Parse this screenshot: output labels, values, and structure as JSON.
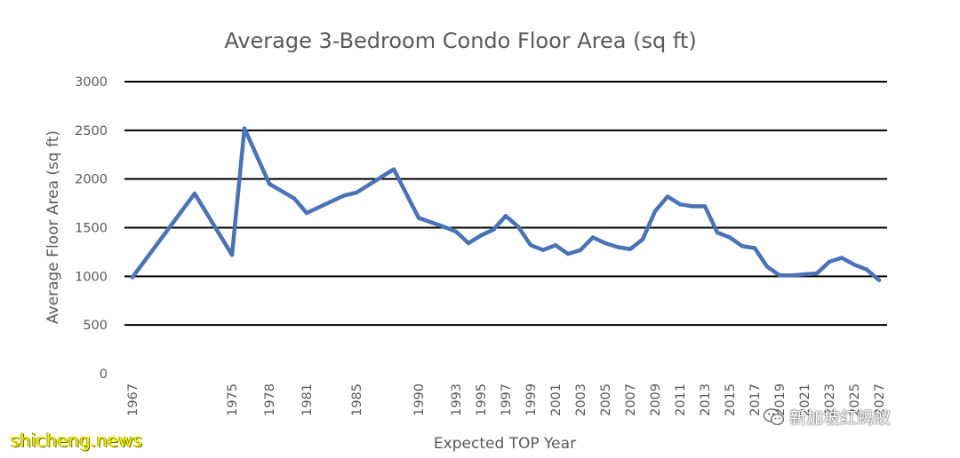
{
  "chart_data": {
    "type": "line",
    "title": "Average 3-Bedroom Condo Floor Area (sq ft)",
    "xlabel": "Expected TOP Year",
    "ylabel": "Average Floor Area (sq ft)",
    "ylim": [
      0,
      3000
    ],
    "yticks": [
      0,
      500,
      1000,
      1500,
      2000,
      2500,
      3000
    ],
    "ytick_labels": [
      "0",
      "500",
      "1000",
      "1500",
      "2000",
      "2500",
      "3000"
    ],
    "xtick_labels": [
      "1967",
      "1975",
      "1978",
      "1981",
      "1985",
      "1990",
      "1993",
      "1995",
      "1997",
      "1999",
      "2001",
      "2003",
      "2005",
      "2007",
      "2009",
      "2011",
      "2013",
      "2015",
      "2017",
      "2019",
      "2021",
      "2023",
      "2025",
      "2027"
    ],
    "categories": [
      "1967",
      "1972",
      "1975",
      "1976",
      "1978",
      "1980",
      "1981",
      "1984",
      "1985",
      "1988",
      "1990",
      "1992",
      "1993",
      "1994",
      "1995",
      "1996",
      "1997",
      "1998",
      "1999",
      "2000",
      "2001",
      "2002",
      "2003",
      "2004",
      "2005",
      "2006",
      "2007",
      "2008",
      "2009",
      "2010",
      "2011",
      "2012",
      "2013",
      "2014",
      "2015",
      "2016",
      "2017",
      "2018",
      "2019",
      "2020",
      "2021",
      "2022",
      "2023",
      "2024",
      "2025",
      "2026",
      "2027"
    ],
    "series": [
      {
        "values": [
          990,
          1850,
          1220,
          2520,
          1950,
          1800,
          1650,
          1830,
          1860,
          2100,
          1600,
          1510,
          1460,
          1340,
          1420,
          1480,
          1620,
          1510,
          1320,
          1270,
          1320,
          1230,
          1270,
          1400,
          1340,
          1300,
          1280,
          1380,
          1670,
          1820,
          1740,
          1720,
          1720,
          1450,
          1400,
          1310,
          1290,
          1100,
          1010,
          1010,
          1020,
          1030,
          1150,
          1190,
          1120,
          1070,
          960
        ]
      }
    ],
    "grid": true,
    "legend": "none",
    "line_color": "#4a72b5"
  },
  "watermarks": {
    "site": "shicheng.news",
    "account": "新加坡红蚂蚁",
    "account_icon": "wechat-icon"
  }
}
